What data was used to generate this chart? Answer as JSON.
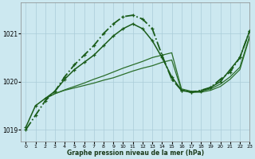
{
  "xlabel": "Graphe pression niveau de la mer (hPa)",
  "bg_color": "#cce8f0",
  "grid_color": "#aaccd8",
  "xlim": [
    -0.5,
    23
  ],
  "ylim": [
    1018.75,
    1021.65
  ],
  "yticks": [
    1019,
    1020,
    1021
  ],
  "xticks": [
    0,
    1,
    2,
    3,
    4,
    5,
    6,
    7,
    8,
    9,
    10,
    11,
    12,
    13,
    14,
    15,
    16,
    17,
    18,
    19,
    20,
    21,
    22,
    23
  ],
  "series": [
    {
      "name": "line_flat1",
      "x": [
        2,
        3,
        4,
        5,
        6,
        7,
        8,
        9,
        10,
        11,
        12,
        13,
        14,
        15,
        16,
        17,
        18,
        19,
        20,
        21,
        22,
        23
      ],
      "y": [
        1019.65,
        1019.75,
        1019.82,
        1019.87,
        1019.92,
        1019.97,
        1020.03,
        1020.08,
        1020.15,
        1020.22,
        1020.28,
        1020.33,
        1020.4,
        1020.45,
        1019.82,
        1019.78,
        1019.78,
        1019.82,
        1019.9,
        1020.05,
        1020.25,
        1020.92
      ],
      "color": "#2a6e2a",
      "lw": 0.9,
      "marker": false,
      "linestyle": "-"
    },
    {
      "name": "line_flat2",
      "x": [
        2,
        3,
        4,
        5,
        6,
        7,
        8,
        9,
        10,
        11,
        12,
        13,
        14,
        15,
        16,
        17,
        18,
        19,
        20,
        21,
        22,
        23
      ],
      "y": [
        1019.65,
        1019.75,
        1019.83,
        1019.9,
        1019.97,
        1020.05,
        1020.12,
        1020.2,
        1020.28,
        1020.35,
        1020.42,
        1020.5,
        1020.55,
        1020.6,
        1019.85,
        1019.8,
        1019.8,
        1019.85,
        1019.95,
        1020.1,
        1020.3,
        1020.95
      ],
      "color": "#2a6e2a",
      "lw": 0.9,
      "marker": false,
      "linestyle": "-"
    },
    {
      "name": "line_medium",
      "x": [
        0,
        1,
        2,
        3,
        4,
        5,
        6,
        7,
        8,
        9,
        10,
        11,
        12,
        13,
        14,
        15,
        16,
        17,
        18,
        19,
        20,
        21,
        22,
        23
      ],
      "y": [
        1019.05,
        1019.5,
        1019.65,
        1019.8,
        1020.05,
        1020.25,
        1020.4,
        1020.55,
        1020.75,
        1020.95,
        1021.1,
        1021.2,
        1021.1,
        1020.85,
        1020.5,
        1020.1,
        1019.82,
        1019.78,
        1019.8,
        1019.88,
        1020.0,
        1020.25,
        1020.5,
        1021.05
      ],
      "color": "#1a5c1a",
      "lw": 1.1,
      "marker": true,
      "linestyle": "-",
      "ms": 3.5
    },
    {
      "name": "line_main",
      "x": [
        0,
        1,
        2,
        3,
        4,
        5,
        6,
        7,
        8,
        9,
        10,
        11,
        12,
        13,
        14,
        15,
        16,
        17,
        18,
        19,
        20,
        21,
        22,
        23
      ],
      "y": [
        1019.0,
        1019.3,
        1019.6,
        1019.8,
        1020.1,
        1020.35,
        1020.55,
        1020.75,
        1021.0,
        1021.2,
        1021.35,
        1021.38,
        1021.3,
        1021.1,
        1020.55,
        1020.05,
        1019.82,
        1019.78,
        1019.82,
        1019.88,
        1020.05,
        1020.2,
        1020.5,
        1021.05
      ],
      "color": "#1a5c1a",
      "lw": 1.3,
      "marker": true,
      "linestyle": "-.",
      "ms": 3.5
    }
  ]
}
